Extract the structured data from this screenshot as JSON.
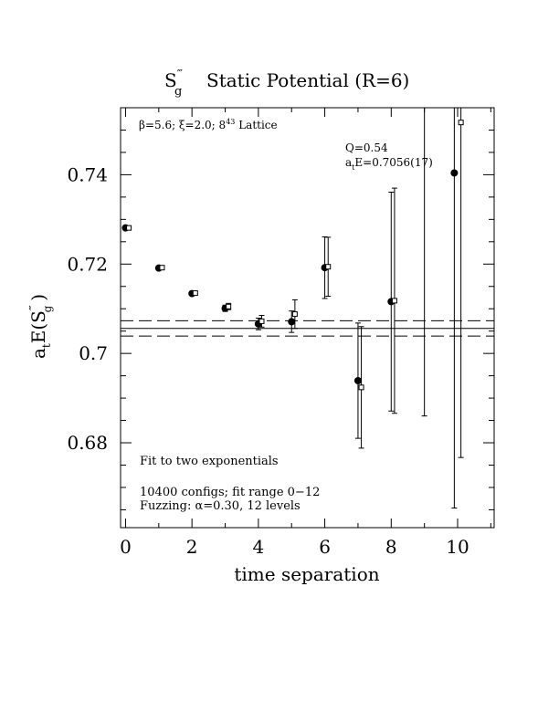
{
  "chart_data": {
    "type": "scatter",
    "title_main": "S",
    "title_sup": "‴",
    "title_sub": "g",
    "title_rest": "Static Potential (R=6)",
    "xlabel": "time separation",
    "ylabel_a": "a",
    "ylabel_t": "t",
    "ylabel_E": "E(S",
    "ylabel_sup": "‴",
    "ylabel_sub": "g",
    "ylabel_close": ")",
    "xlim": [
      -0.15,
      11.1
    ],
    "ylim": [
      0.661,
      0.755
    ],
    "x_ticks": [
      0,
      2,
      4,
      6,
      8,
      10
    ],
    "x_tick_labels": [
      "0",
      "2",
      "4",
      "6",
      "8",
      "10"
    ],
    "y_ticks": [
      0.68,
      0.7,
      0.72,
      0.74
    ],
    "y_tick_labels": [
      "0.68",
      "0.7",
      "0.72",
      "0.74"
    ],
    "lattice_label": "β=5.6; ξ=2.0; 8",
    "lattice_sup": "4",
    "lattice_sup2": "3",
    "lattice_rest": " Lattice",
    "q_label": "Q=0.54",
    "energy_a": "a",
    "energy_t": "t",
    "energy_rest": "E=0.7056(17)",
    "fit_note": "Fit to two exponentials",
    "configs_note": "10400 configs; fit range 0−12",
    "fuzz_note": "Fuzzing: α=0.30, 12 levels",
    "fit_value": 0.7056,
    "fit_band": [
      0.7039,
      0.7073
    ],
    "series": [
      {
        "marker": "filled-circle",
        "x": [
          0,
          1,
          2,
          3,
          4,
          5,
          6,
          7,
          8,
          9.9
        ],
        "y": [
          0.7281,
          0.7191,
          0.7134,
          0.7101,
          0.7066,
          0.7071,
          0.7192,
          0.6939,
          0.7116,
          0.7404
        ],
        "err": [
          0.0002,
          0.0003,
          0.0004,
          0.0007,
          0.0013,
          0.0024,
          0.0069,
          0.0129,
          0.0245,
          0.075
        ]
      },
      {
        "marker": "open-square",
        "x": [
          0.1,
          1.1,
          2.1,
          3.1,
          4.1,
          5.1,
          6.1,
          7.1,
          8.1,
          10.1
        ],
        "y": [
          0.7281,
          0.7192,
          0.7135,
          0.7105,
          0.7072,
          0.7088,
          0.7194,
          0.6924,
          0.7118,
          0.7517
        ],
        "err": [
          0.0002,
          0.0003,
          0.0004,
          0.0007,
          0.0013,
          0.0032,
          0.0066,
          0.0136,
          0.0252,
          0.075
        ]
      },
      {
        "marker": "none",
        "x": [
          9
        ],
        "y": [
          0.7245
        ],
        "err": [
          0.0385
        ]
      }
    ]
  }
}
